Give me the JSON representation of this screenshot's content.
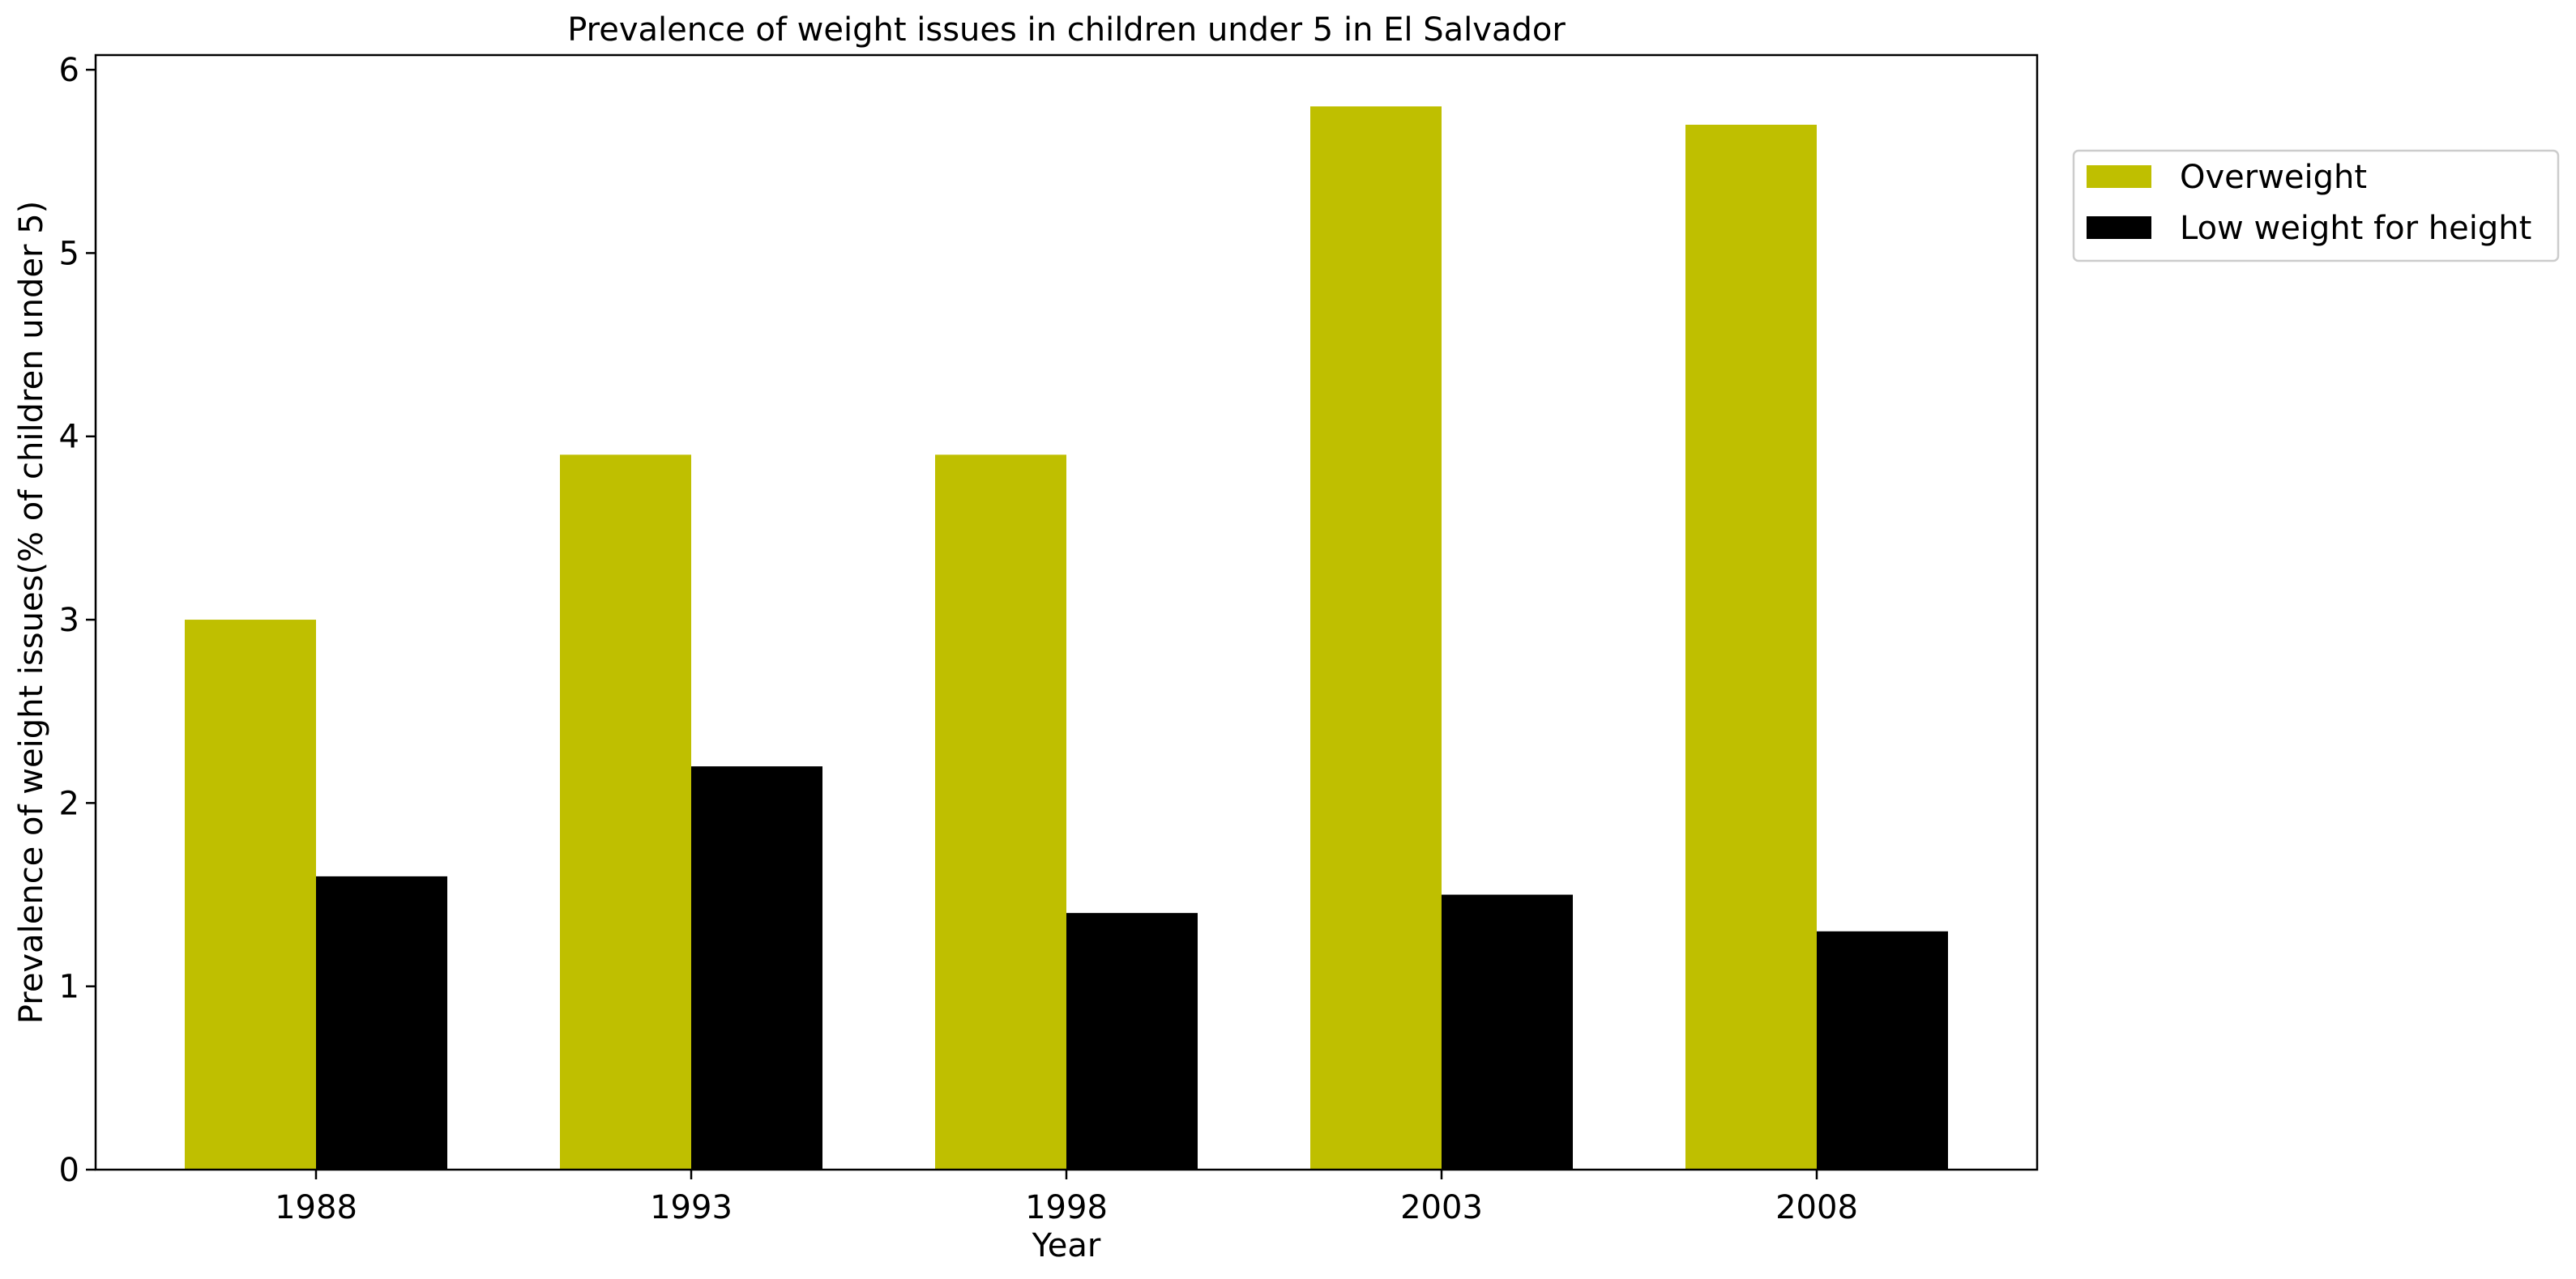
{
  "chart_data": {
    "type": "bar",
    "title": "Prevalence of weight issues in children under 5 in El Salvador",
    "xlabel": "Year",
    "ylabel": "Prevalence of weight issues(% of children under 5)",
    "categories": [
      "1988",
      "1993",
      "1998",
      "2003",
      "2008"
    ],
    "ylim": [
      0,
      6.08
    ],
    "yticks": [
      0,
      1,
      2,
      3,
      4,
      5,
      6
    ],
    "grid": false,
    "legend_position": "outside-top-right",
    "series": [
      {
        "name": "Overweight",
        "color": "#bfbf00",
        "values": [
          3.0,
          3.9,
          3.9,
          5.8,
          5.7
        ]
      },
      {
        "name": "Low weight for height",
        "color": "#000000",
        "values": [
          1.6,
          2.2,
          1.4,
          1.5,
          1.3
        ]
      }
    ]
  }
}
